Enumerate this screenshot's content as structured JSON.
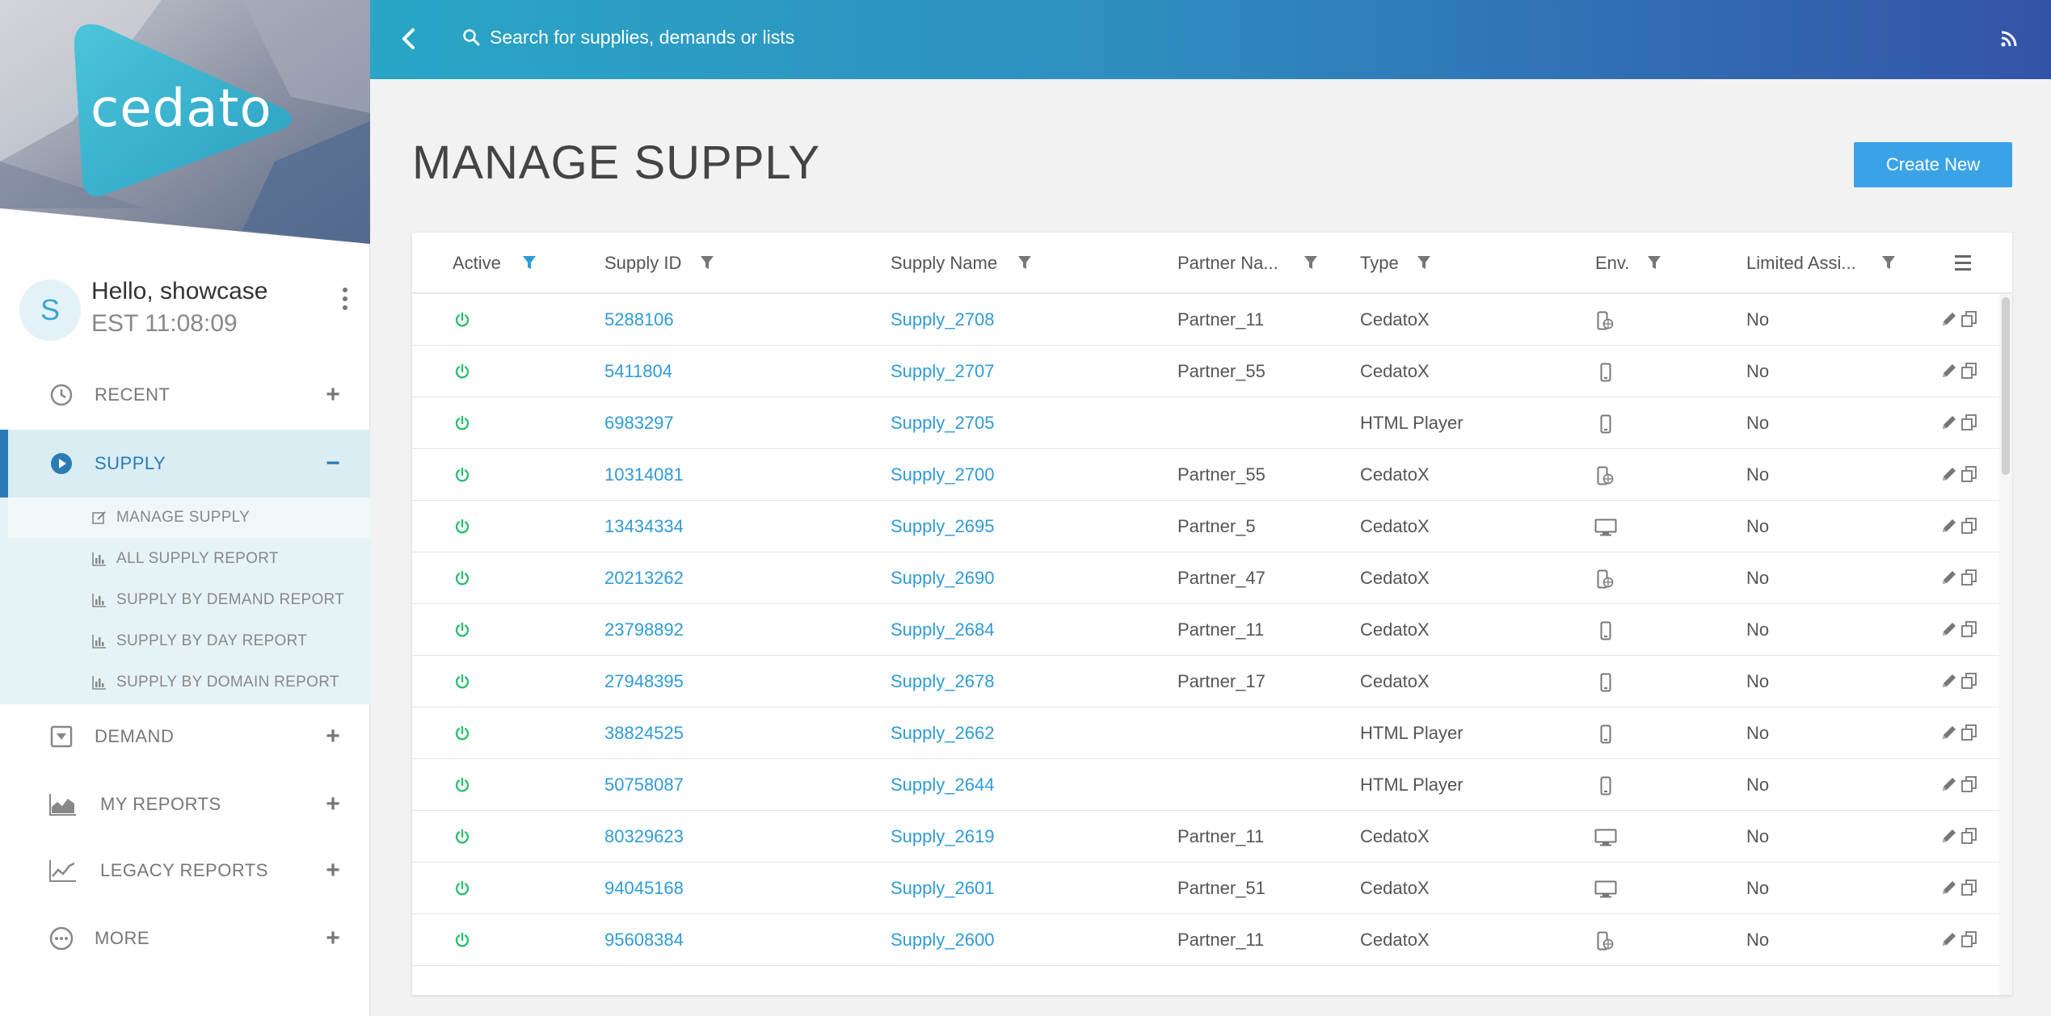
{
  "brand": {
    "logo_text": "cedato"
  },
  "user": {
    "avatar_letter": "S",
    "greeting": "Hello, showcase",
    "clock": "EST 11:08:09"
  },
  "header": {
    "search_placeholder": "Search for supplies, demands or lists"
  },
  "sidebar": {
    "items": [
      {
        "label": "RECENT",
        "icon": "clock-icon",
        "toggle": "+"
      },
      {
        "label": "SUPPLY",
        "icon": "play-circle-icon",
        "toggle": "−"
      },
      {
        "label": "DEMAND",
        "icon": "inbox-down-icon",
        "toggle": "+"
      },
      {
        "label": "MY REPORTS",
        "icon": "area-chart-icon",
        "toggle": "+"
      },
      {
        "label": "LEGACY REPORTS",
        "icon": "line-chart-icon",
        "toggle": "+"
      },
      {
        "label": "MORE",
        "icon": "ellipsis-circle-icon",
        "toggle": "+"
      }
    ],
    "supply_sub": [
      {
        "label": "MANAGE SUPPLY",
        "icon": "edit-icon"
      },
      {
        "label": "ALL SUPPLY REPORT",
        "icon": "bar-chart-icon"
      },
      {
        "label": "SUPPLY BY DEMAND REPORT",
        "icon": "bar-chart-icon"
      },
      {
        "label": "SUPPLY BY DAY REPORT",
        "icon": "bar-chart-icon"
      },
      {
        "label": "SUPPLY BY DOMAIN REPORT",
        "icon": "bar-chart-icon"
      }
    ]
  },
  "main": {
    "title": "MANAGE SUPPLY",
    "create_label": "Create New",
    "columns": [
      "Active",
      "Supply ID",
      "Supply Name",
      "Partner Na...",
      "Type",
      "Env.",
      "Limited Assi..."
    ],
    "rows": [
      {
        "id": "5288106",
        "name": "Supply_2708",
        "partner": "Partner_11",
        "type": "CedatoX",
        "env": "mobile-web",
        "limited": "No"
      },
      {
        "id": "5411804",
        "name": "Supply_2707",
        "partner": "Partner_55",
        "type": "CedatoX",
        "env": "mobile",
        "limited": "No"
      },
      {
        "id": "6983297",
        "name": "Supply_2705",
        "partner": "",
        "type": "HTML Player",
        "env": "mobile",
        "limited": "No"
      },
      {
        "id": "10314081",
        "name": "Supply_2700",
        "partner": "Partner_55",
        "type": "CedatoX",
        "env": "mobile-web",
        "limited": "No"
      },
      {
        "id": "13434334",
        "name": "Supply_2695",
        "partner": "Partner_5",
        "type": "CedatoX",
        "env": "desktop",
        "limited": "No"
      },
      {
        "id": "20213262",
        "name": "Supply_2690",
        "partner": "Partner_47",
        "type": "CedatoX",
        "env": "mobile-web",
        "limited": "No"
      },
      {
        "id": "23798892",
        "name": "Supply_2684",
        "partner": "Partner_11",
        "type": "CedatoX",
        "env": "mobile",
        "limited": "No"
      },
      {
        "id": "27948395",
        "name": "Supply_2678",
        "partner": "Partner_17",
        "type": "CedatoX",
        "env": "mobile",
        "limited": "No"
      },
      {
        "id": "38824525",
        "name": "Supply_2662",
        "partner": "",
        "type": "HTML Player",
        "env": "mobile",
        "limited": "No"
      },
      {
        "id": "50758087",
        "name": "Supply_2644",
        "partner": "",
        "type": "HTML Player",
        "env": "mobile",
        "limited": "No"
      },
      {
        "id": "80329623",
        "name": "Supply_2619",
        "partner": "Partner_11",
        "type": "CedatoX",
        "env": "desktop",
        "limited": "No"
      },
      {
        "id": "94045168",
        "name": "Supply_2601",
        "partner": "Partner_51",
        "type": "CedatoX",
        "env": "desktop",
        "limited": "No"
      },
      {
        "id": "95608384",
        "name": "Supply_2600",
        "partner": "Partner_11",
        "type": "CedatoX",
        "env": "mobile-web",
        "limited": "No"
      }
    ]
  },
  "colors": {
    "accent": "#2b7bb5",
    "link": "#2f9bd6",
    "active_green": "#2fbf71",
    "button": "#3aa3e8"
  }
}
